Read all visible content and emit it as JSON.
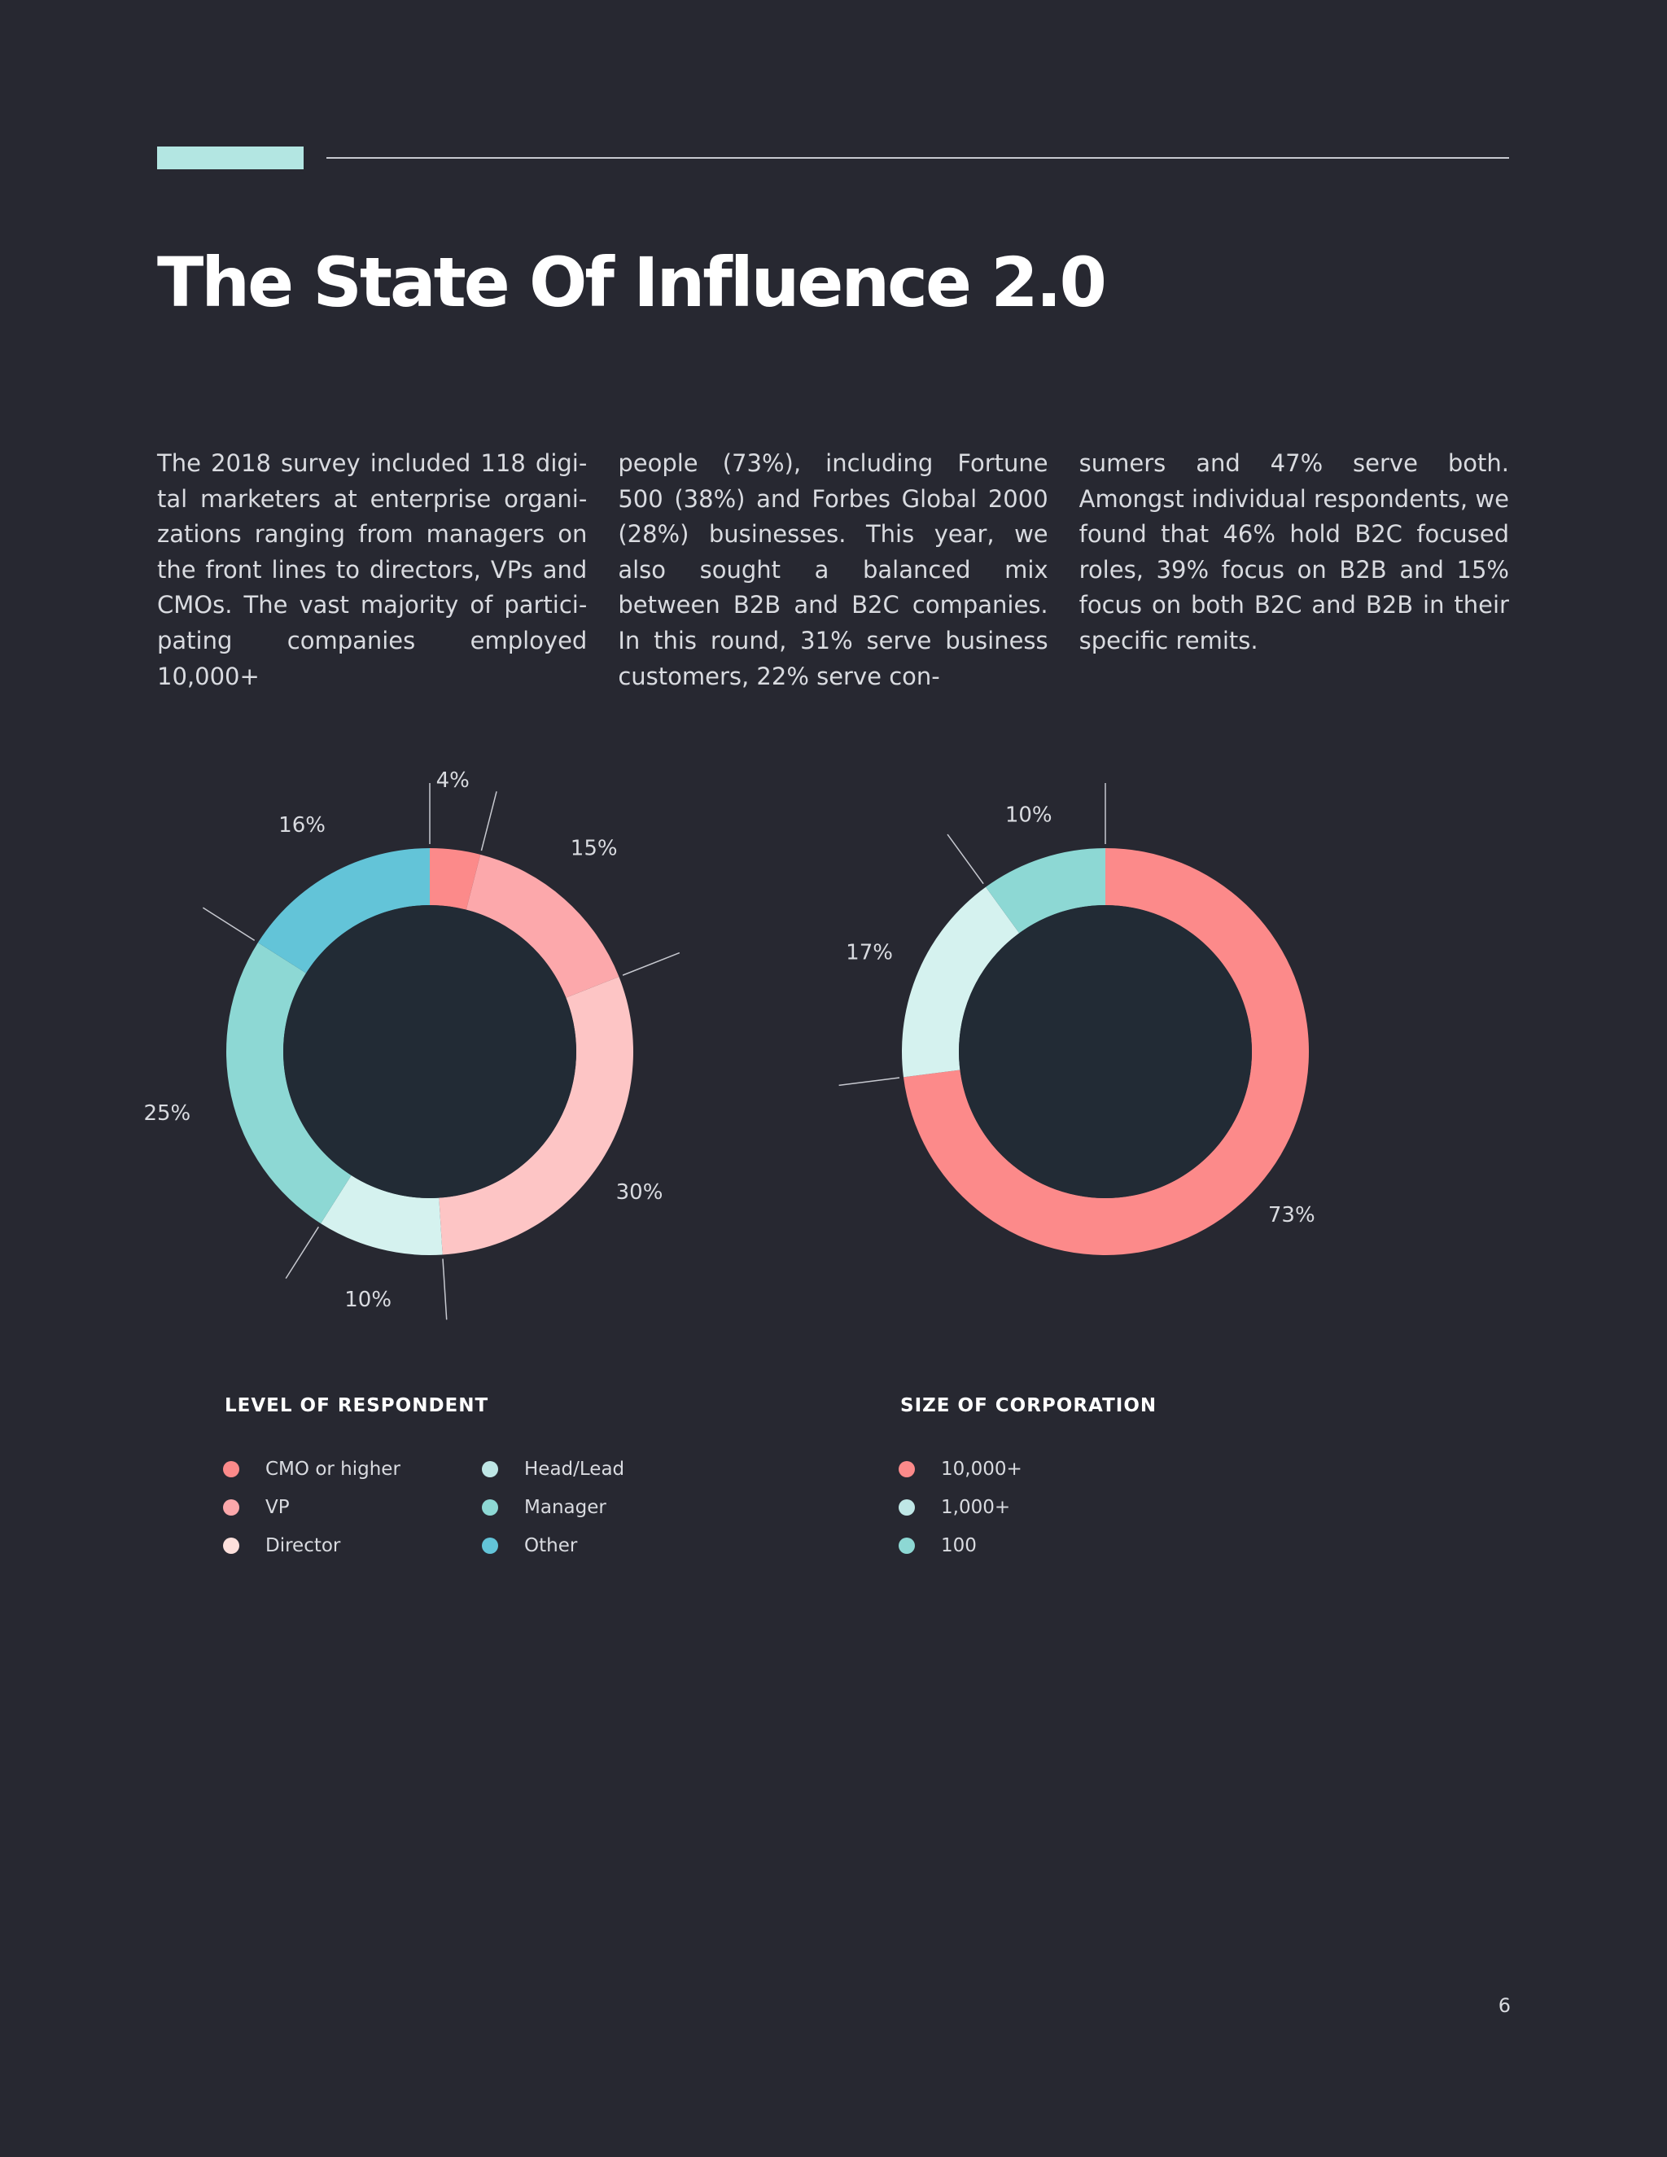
{
  "page": {
    "title": "The State Of Influence 2.0",
    "page_number": "6",
    "accent_color": "#b3e6e2"
  },
  "intro": {
    "columns": [
      "The 2018 survey included 118 digi-tal marketers at enterprise organi-zations ranging from managers on the front lines to directors, VPs and CMOs. The vast majority of partici-pating companies employed 10,000+",
      "people (73%), including Fortune 500 (38%) and Forbes Global 2000 (28%) businesses. This year, we also sought a balanced mix between B2B and B2C companies. In this round, 31% serve business customers, 22% serve con-",
      "sumers and 47% serve both. Amongst individual respondents, we found that 46% hold B2C focused roles, 39% focus on B2B and 15% focus on both B2C and B2B in their specific remits."
    ]
  },
  "chart_data": [
    {
      "type": "pie",
      "variant": "donut",
      "title": "LEVEL OF RESPONDENT",
      "categories": [
        "CMO or higher",
        "VP",
        "Director",
        "Head/Lead",
        "Manager",
        "Other"
      ],
      "values": [
        4,
        15,
        30,
        10,
        25,
        16
      ],
      "labels": [
        "4%",
        "15%",
        "30%",
        "10%",
        "25%",
        "16%"
      ],
      "colors": [
        "#fc8a8a",
        "#fca8ab",
        "#fdc5c5",
        "#d5f2ef",
        "#8dd8d4",
        "#63c4d8"
      ],
      "legend": "bottom"
    },
    {
      "type": "pie",
      "variant": "donut",
      "title": "SIZE OF CORPORATION",
      "categories": [
        "10,000+",
        "1,000+",
        "100"
      ],
      "values": [
        73,
        17,
        10
      ],
      "labels": [
        "73%",
        "17%",
        "10%"
      ],
      "colors": [
        "#fc8a8a",
        "#d5f2ef",
        "#8dd8d4"
      ],
      "legend": "bottom"
    }
  ]
}
